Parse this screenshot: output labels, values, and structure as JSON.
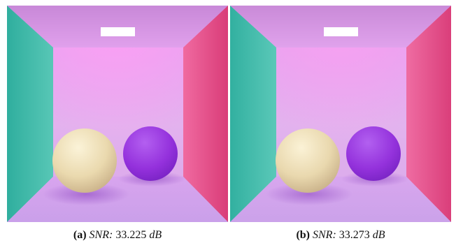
{
  "figure": {
    "panels": [
      {
        "label": "(a)",
        "metric": "SNR:",
        "value": "33.225",
        "unit": "dB"
      },
      {
        "label": "(b)",
        "metric": "SNR:",
        "value": "33.273",
        "unit": "dB"
      }
    ],
    "colors": {
      "left_wall": "#3fb7a6",
      "right_wall": "#e8508a",
      "back_wall": "#e6a8ec",
      "ceiling": "#d49ae0",
      "floor": "#dcaaf0",
      "light": "#ffffff",
      "diffuse_sphere": "#efe2b6",
      "purple_sphere": "#9633dc"
    }
  }
}
